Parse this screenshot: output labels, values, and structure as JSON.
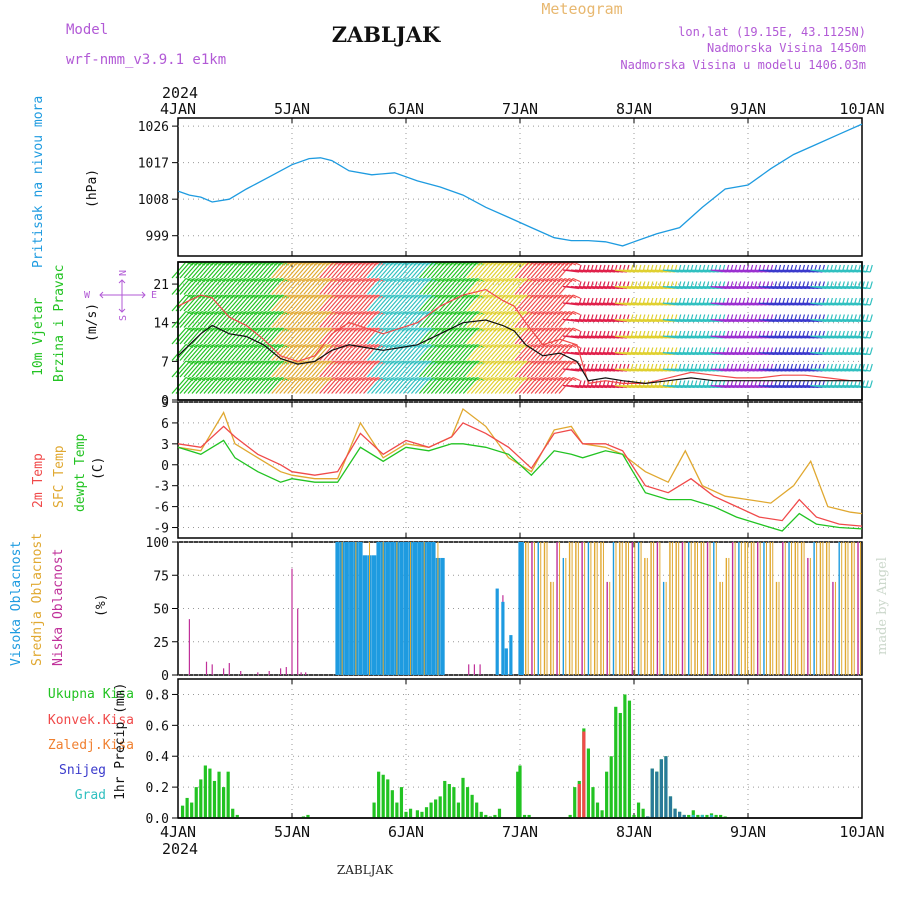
{
  "header": {
    "title": "ZABLJAK",
    "meteogram_label": "Meteogram",
    "model_label": "Model",
    "model_name": "wrf-nmm_v3.9.1  e1km",
    "lonlat": "lon,lat (19.15E, 43.1125N)",
    "elevation": "Nadmorska Visina 1450m",
    "model_elevation": "Nadmorska Visina u modelu 1406.03m",
    "year": "2024",
    "footer_location": "ZABLJAK",
    "credit": "made by Angel"
  },
  "colors": {
    "pressure": "#1e9be0",
    "temp2m": "#f04a4a",
    "sfc_temp": "#e0a830",
    "dewpoint": "#22c322",
    "high_cloud": "#1e9be0",
    "mid_cloud": "#e0a830",
    "low_cloud": "#c0309a",
    "total_precip": "#22c322",
    "convective": "#f04a4a",
    "frozen": "#f08030",
    "snow": "#3a3acc",
    "hail": "#30c0c0",
    "title_purple": "#b25ad6",
    "meteogram_orange": "#e8b870"
  },
  "chart_data": [
    {
      "type": "line",
      "panel": "pressure",
      "ylabel_left": "Pritisak na nivou mora",
      "ylabel_right": "(hPa)",
      "x_axis": {
        "start": "2024-01-04",
        "end": "2024-01-10",
        "ticks": [
          "4JAN",
          "5JAN",
          "6JAN",
          "7JAN",
          "8JAN",
          "9JAN",
          "10JAN"
        ]
      },
      "ylim": [
        994,
        1028
      ],
      "yticks": [
        999,
        1008,
        1017,
        1026
      ],
      "grid": true,
      "series": [
        {
          "values_x_days": [
            0,
            0.1,
            0.2,
            0.3,
            0.45,
            0.6,
            0.8,
            1.0,
            1.15,
            1.25,
            1.35,
            1.5,
            1.7,
            1.9,
            2.1,
            2.3,
            2.5,
            2.7,
            2.9,
            3.1,
            3.3,
            3.45,
            3.6,
            3.75,
            3.9,
            4.0,
            4.2,
            4.4,
            4.6,
            4.8,
            5.0,
            5.2,
            5.4,
            5.6,
            5.8,
            6.0
          ],
          "values": [
            1010,
            1009,
            1008.5,
            1007.3,
            1008,
            1010.5,
            1013.5,
            1016.5,
            1018,
            1018.2,
            1017.5,
            1015,
            1014,
            1014.5,
            1012.5,
            1011,
            1009,
            1006,
            1003.5,
            1001,
            998.5,
            997.8,
            997.8,
            997.5,
            996.5,
            997.5,
            999.5,
            1001,
            1006,
            1010.5,
            1011.5,
            1015.5,
            1019,
            1021.5,
            1024,
            1026.5
          ]
        }
      ]
    },
    {
      "type": "line",
      "panel": "wind",
      "ylabel_left": [
        "10m Vjetar",
        "Brzina i Pravac"
      ],
      "ylabel_right": "(m/s)",
      "compass": {
        "n": "N",
        "s": "S",
        "w": "W",
        "e": "E"
      },
      "ylim": [
        0,
        25
      ],
      "yticks": [
        0,
        7,
        14,
        21
      ],
      "grid": true,
      "series": [
        {
          "name": "speed",
          "values_x_days": [
            0,
            0.1,
            0.2,
            0.3,
            0.45,
            0.6,
            0.75,
            0.9,
            1.05,
            1.2,
            1.35,
            1.5,
            1.65,
            1.8,
            1.95,
            2.1,
            2.3,
            2.5,
            2.7,
            2.85,
            2.95,
            3.05,
            3.2,
            3.35,
            3.5,
            3.6,
            3.75,
            3.9,
            4.1,
            4.3,
            4.5,
            4.7,
            4.9,
            5.1,
            5.3,
            5.5,
            5.7,
            5.9,
            6.0
          ],
          "values": [
            8,
            10,
            12,
            13.5,
            12,
            11.5,
            10,
            7.5,
            6.5,
            7,
            9,
            10,
            9.5,
            9,
            9.5,
            10,
            12,
            14,
            14.5,
            13.5,
            12.5,
            10,
            8,
            8.5,
            7,
            3.5,
            4,
            3.5,
            3,
            3.5,
            4,
            3.5,
            3.5,
            3.5,
            3.5,
            3.5,
            3.5,
            3.5,
            3.5
          ]
        },
        {
          "name": "gust",
          "values_x_days": [
            0,
            0.1,
            0.2,
            0.3,
            0.45,
            0.6,
            0.75,
            0.9,
            1.05,
            1.2,
            1.35,
            1.5,
            1.65,
            1.8,
            1.95,
            2.1,
            2.3,
            2.5,
            2.7,
            2.85,
            2.95,
            3.05,
            3.2,
            3.35,
            3.5,
            3.6,
            3.75,
            3.9,
            4.1,
            4.3,
            4.5,
            4.7,
            4.9,
            5.1,
            5.3,
            5.5,
            5.7,
            5.9,
            6.0
          ],
          "values": [
            17,
            18,
            19,
            18.5,
            15,
            13.5,
            11,
            8,
            7,
            8,
            12,
            14,
            13,
            12,
            13,
            14,
            17,
            19,
            20,
            18,
            17,
            14,
            10,
            11,
            10,
            3,
            3.5,
            3,
            3,
            4,
            5,
            4.5,
            4,
            4,
            4.5,
            4.5,
            4,
            3.5,
            3.5
          ]
        }
      ],
      "barb_colors": [
        "#22c322",
        "#22c322",
        "#e0a830",
        "#f04a4a",
        "#30c0c0",
        "#22c322",
        "#e0d030",
        "#f04a4a",
        "#e0204a",
        "#e0d030",
        "#30c0c0",
        "#9b30d0",
        "#3a3acc",
        "#30c0c0"
      ]
    },
    {
      "type": "line",
      "panel": "temperature",
      "ylabel_left": [
        "2m Temp",
        "SFC Temp",
        "dewpt Temp"
      ],
      "ylabel_right": "(C)",
      "ylim": [
        -10.5,
        9
      ],
      "yticks": [
        -9,
        -6,
        -3,
        0,
        3,
        6,
        9
      ],
      "grid": true,
      "series": [
        {
          "name": "2m Temp",
          "values_x_days": [
            0,
            0.2,
            0.4,
            0.5,
            0.7,
            0.9,
            1.0,
            1.2,
            1.4,
            1.6,
            1.8,
            2.0,
            2.2,
            2.4,
            2.5,
            2.7,
            2.9,
            3.1,
            3.3,
            3.45,
            3.55,
            3.75,
            3.9,
            4.1,
            4.3,
            4.5,
            4.7,
            4.9,
            5.1,
            5.3,
            5.45,
            5.6,
            5.8,
            6.0
          ],
          "values": [
            3,
            2.5,
            5.5,
            4,
            1.5,
            0,
            -1,
            -1.5,
            -1,
            4.5,
            1.5,
            3.5,
            2.5,
            4,
            6,
            4.5,
            2.5,
            -0.5,
            4.5,
            5,
            3,
            3,
            2,
            -3,
            -4,
            -2,
            -4.5,
            -6,
            -7.5,
            -8,
            -5,
            -7.5,
            -8.5,
            -8.8
          ]
        },
        {
          "name": "SFC Temp",
          "values_x_days": [
            0,
            0.2,
            0.4,
            0.5,
            0.7,
            0.9,
            1.0,
            1.2,
            1.4,
            1.6,
            1.8,
            2.0,
            2.2,
            2.4,
            2.5,
            2.7,
            2.9,
            3.1,
            3.3,
            3.45,
            3.55,
            3.75,
            3.9,
            4.1,
            4.3,
            4.45,
            4.6,
            4.8,
            5.0,
            5.2,
            5.4,
            5.55,
            5.7,
            5.9,
            6.0
          ],
          "values": [
            2.5,
            2,
            7.5,
            3,
            1,
            -1,
            -1.5,
            -2,
            -2,
            6,
            1,
            3,
            2.5,
            4,
            8,
            5.5,
            1,
            -1,
            5,
            5.5,
            3,
            2.5,
            1.5,
            -1,
            -2.5,
            2,
            -3,
            -4.5,
            -5,
            -5.5,
            -3,
            0.5,
            -6,
            -6.8,
            -7
          ]
        },
        {
          "name": "dewpt Temp",
          "values_x_days": [
            0,
            0.2,
            0.4,
            0.5,
            0.7,
            0.9,
            1.0,
            1.2,
            1.4,
            1.6,
            1.8,
            2.0,
            2.2,
            2.4,
            2.5,
            2.7,
            2.9,
            3.1,
            3.3,
            3.45,
            3.55,
            3.75,
            3.9,
            4.1,
            4.3,
            4.5,
            4.7,
            4.9,
            5.1,
            5.3,
            5.45,
            5.6,
            5.8,
            6.0
          ],
          "values": [
            2.5,
            1.5,
            3.5,
            1,
            -1,
            -2.5,
            -2,
            -2.5,
            -2.5,
            2.5,
            0.5,
            2.5,
            2,
            3,
            3,
            2.5,
            1.5,
            -1.5,
            2,
            1.5,
            1,
            2,
            1.5,
            -4,
            -5,
            -5,
            -6,
            -7.5,
            -8.5,
            -9.5,
            -7,
            -8.5,
            -9,
            -9.2
          ]
        }
      ]
    },
    {
      "type": "bar",
      "panel": "clouds",
      "ylabel_left": [
        "Visoka Oblacnost",
        "Srednja Oblacnost",
        "Niska Oblacnost"
      ],
      "ylabel_right": "(%)",
      "ylim": [
        0,
        100
      ],
      "yticks": [
        0,
        25,
        50,
        75,
        100
      ],
      "grid": true,
      "low_cloud": {
        "x_days": [
          0.1,
          0.25,
          0.3,
          0.4,
          0.45,
          0.55,
          0.7,
          0.8,
          0.9,
          0.95,
          1.0,
          1.05,
          1.08,
          1.12,
          2.55,
          2.6,
          2.65,
          2.85
        ],
        "values": [
          42,
          10,
          8,
          5,
          9,
          3,
          2,
          3,
          5,
          6,
          80,
          50,
          2,
          2,
          8,
          8,
          8,
          60
        ]
      },
      "high_cloud": {
        "start": 1.4,
        "end": 2.35,
        "x_days": [
          2.8,
          2.85,
          2.88,
          2.92,
          3.0,
          3.02
        ],
        "values": [
          65,
          55,
          20,
          30,
          100,
          100
        ]
      },
      "mixed_cloud": {
        "start": 3.05,
        "end": 6.0,
        "step": 0.055
      }
    },
    {
      "type": "bar",
      "panel": "precip",
      "ylabel_left": [
        "Ukupna Kisa",
        "Konvek.Kisa",
        "Zaledj.Kisa",
        "Snijeg",
        "Grad"
      ],
      "ylabel_right": "1hr Precip (mm)",
      "ylim": [
        0,
        0.9
      ],
      "yticks": [
        0,
        0.2,
        0.4,
        0.6,
        0.8
      ],
      "grid": true,
      "x_axis": {
        "ticks": [
          "4JAN",
          "5JAN",
          "6JAN",
          "7JAN",
          "8JAN",
          "9JAN",
          "10JAN"
        ],
        "year": "2024"
      },
      "total_precip": {
        "x_days": [
          0.04,
          0.08,
          0.12,
          0.16,
          0.2,
          0.24,
          0.28,
          0.32,
          0.36,
          0.4,
          0.44,
          0.48,
          0.52,
          1.1,
          1.14,
          1.72,
          1.76,
          1.8,
          1.84,
          1.88,
          1.92,
          1.96,
          2.0,
          2.04,
          2.1,
          2.14,
          2.18,
          2.22,
          2.26,
          2.3,
          2.34,
          2.38,
          2.42,
          2.46,
          2.5,
          2.54,
          2.58,
          2.62,
          2.66,
          2.7,
          2.74,
          2.78,
          2.82,
          2.98,
          3.0,
          3.04,
          3.08,
          3.44,
          3.48,
          3.52,
          3.56,
          3.6,
          3.64,
          3.68,
          3.72,
          3.76,
          3.8,
          3.84,
          3.88,
          3.92,
          3.96,
          4.0,
          4.04,
          4.08,
          4.12,
          4.16,
          4.2,
          4.24,
          4.28,
          4.32,
          4.36,
          4.4,
          4.44,
          4.48,
          4.52,
          4.56,
          4.6,
          4.64,
          4.68,
          4.72,
          4.76,
          4.8
        ],
        "values": [
          0.08,
          0.13,
          0.1,
          0.2,
          0.25,
          0.34,
          0.32,
          0.24,
          0.3,
          0.2,
          0.3,
          0.06,
          0.02,
          0.01,
          0.02,
          0.1,
          0.3,
          0.28,
          0.25,
          0.18,
          0.1,
          0.2,
          0.04,
          0.06,
          0.05,
          0.04,
          0.07,
          0.1,
          0.12,
          0.14,
          0.24,
          0.22,
          0.2,
          0.1,
          0.26,
          0.2,
          0.15,
          0.1,
          0.04,
          0.02,
          0.01,
          0.02,
          0.06,
          0.3,
          0.34,
          0.02,
          0.02,
          0.02,
          0.2,
          0.24,
          0.58,
          0.45,
          0.2,
          0.1,
          0.05,
          0.3,
          0.4,
          0.72,
          0.68,
          0.8,
          0.76,
          0.02,
          0.1,
          0.06,
          0.01,
          0.32,
          0.3,
          0.38,
          0.4,
          0.14,
          0.06,
          0.04,
          0.02,
          0.02,
          0.05,
          0.02,
          0.02,
          0.02,
          0.03,
          0.02,
          0.02,
          0.01
        ]
      },
      "convective": {
        "x_days": [
          3.52,
          3.56
        ],
        "values": [
          0.22,
          0.56
        ]
      },
      "snow": {
        "x_days": [
          4.12,
          4.16,
          4.2,
          4.24,
          4.28,
          4.32,
          4.36,
          4.4,
          4.44
        ],
        "values": [
          0.01,
          0.32,
          0.3,
          0.38,
          0.4,
          0.14,
          0.06,
          0.04,
          0.02
        ]
      },
      "hail": {
        "x_days": [
          4.52,
          4.6,
          4.68
        ],
        "values": [
          0.02,
          0.02,
          0.02
        ]
      }
    }
  ]
}
